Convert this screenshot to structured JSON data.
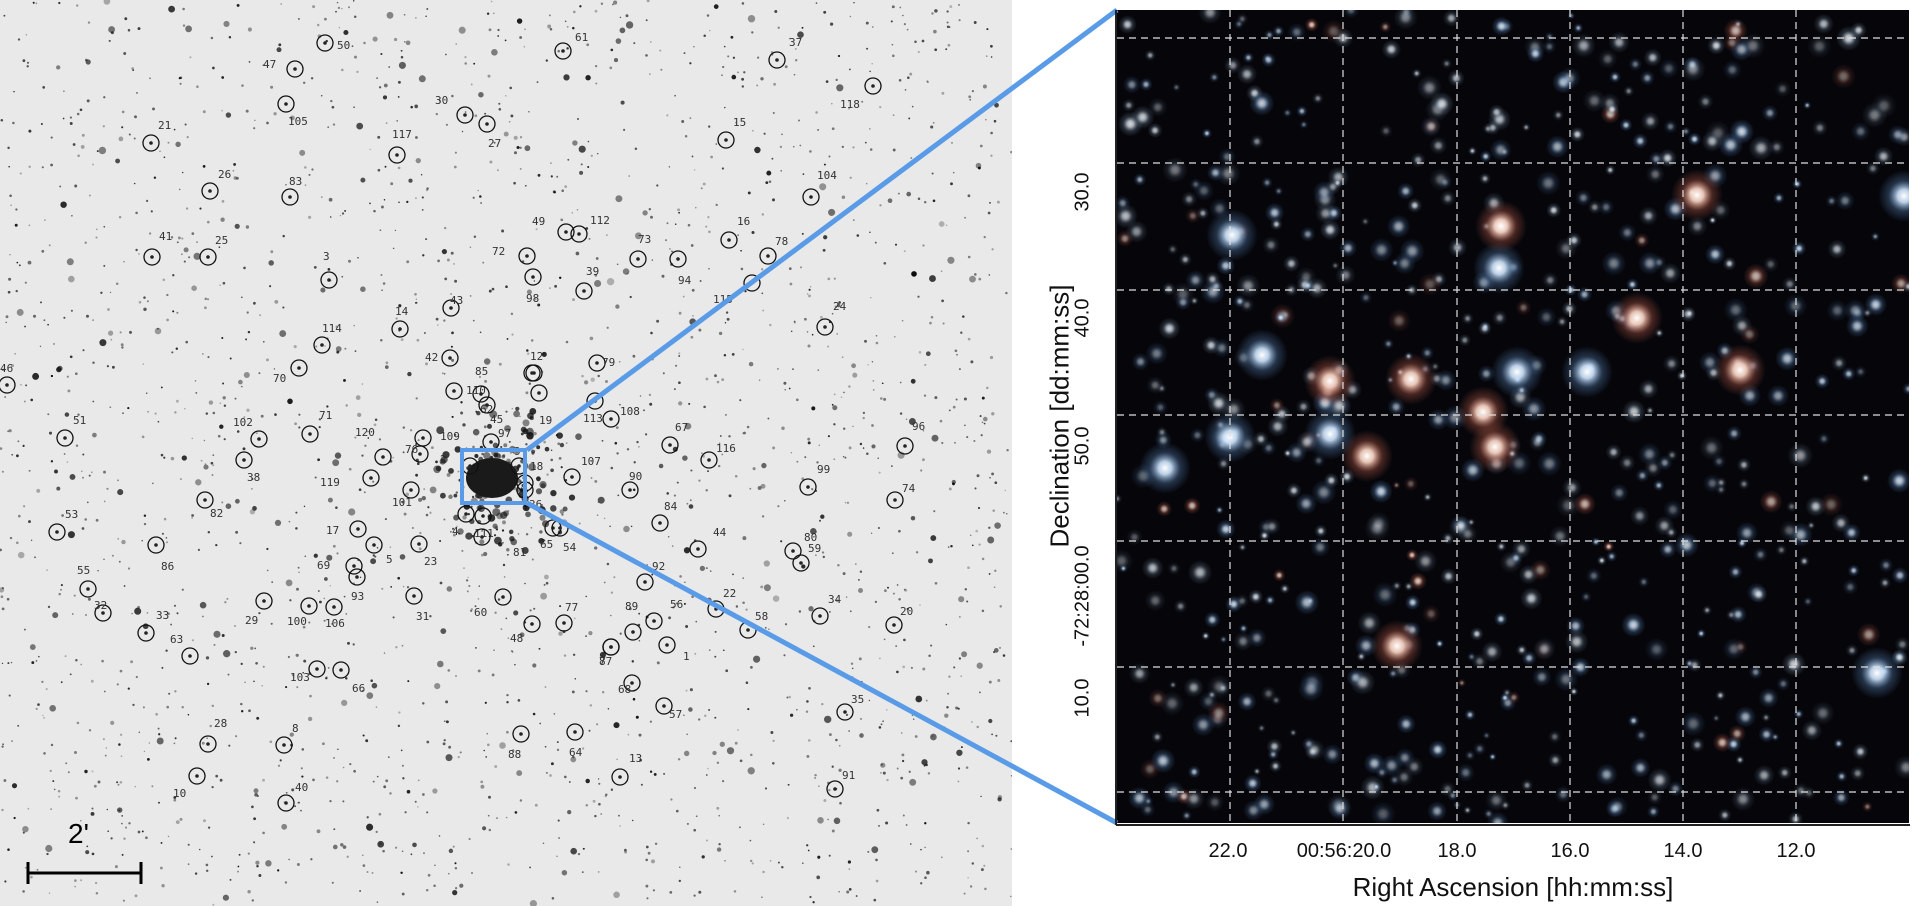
{
  "left_image": {
    "scale_bar_label": "2'",
    "zoom_box_color": "#5a9be8",
    "labels": [
      "50",
      "61",
      "37",
      "47",
      "105",
      "30",
      "27",
      "118",
      "21",
      "117",
      "15",
      "26",
      "83",
      "104",
      "49",
      "112",
      "16",
      "41",
      "25",
      "72",
      "73",
      "78",
      "3",
      "94",
      "39",
      "98",
      "115",
      "43",
      "14",
      "24",
      "114",
      "12",
      "42",
      "79",
      "70",
      "85",
      "110",
      "62",
      "45",
      "19",
      "113",
      "108",
      "46",
      "51",
      "102",
      "71",
      "120",
      "109",
      "97",
      "67",
      "76",
      "116",
      "96",
      "38",
      "2",
      "9",
      "18",
      "107",
      "119",
      "101",
      "90",
      "99",
      "82",
      "74",
      "53",
      "36",
      "84",
      "17",
      "4",
      "111",
      "65",
      "81",
      "54",
      "44",
      "80",
      "86",
      "23",
      "5",
      "59",
      "55",
      "69",
      "93",
      "92",
      "32",
      "33",
      "29",
      "100",
      "106",
      "31",
      "60",
      "77",
      "89",
      "56",
      "22",
      "58",
      "34",
      "20",
      "63",
      "48",
      "1",
      "7",
      "103",
      "66",
      "87",
      "68",
      "57",
      "35",
      "28",
      "8",
      "88",
      "64",
      "13",
      "10",
      "91",
      "40"
    ]
  },
  "right_image": {
    "x_axis_label": "Right Ascension [hh:mm:ss]",
    "y_axis_label": "Declination [dd:mm:ss]",
    "x_ticks": [
      "22.0",
      "00:56:20.0",
      "18.0",
      "16.0",
      "14.0",
      "12.0"
    ],
    "y_ticks": [
      "30.0",
      "40.0",
      "50.0",
      "-72:28:00.0",
      "10.0"
    ]
  }
}
